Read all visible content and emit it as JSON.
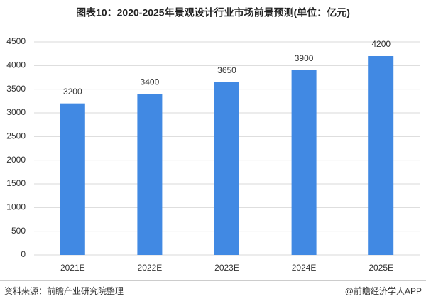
{
  "chart_data": {
    "type": "bar",
    "title": "图表10：2020-2025年景观设计行业市场前景预测(单位：亿元)",
    "categories": [
      "2021E",
      "2022E",
      "2023E",
      "2024E",
      "2025E"
    ],
    "values": [
      3200,
      3400,
      3650,
      3900,
      4200
    ],
    "color": "#4189e3",
    "ylim": [
      0,
      4500
    ],
    "yticks": [
      0,
      500,
      1000,
      1500,
      2000,
      2500,
      3000,
      3500,
      4000,
      4500
    ],
    "grid": true,
    "source": "资料来源：前瞻产业研究院整理",
    "credit": "@前瞻经济学人APP"
  }
}
